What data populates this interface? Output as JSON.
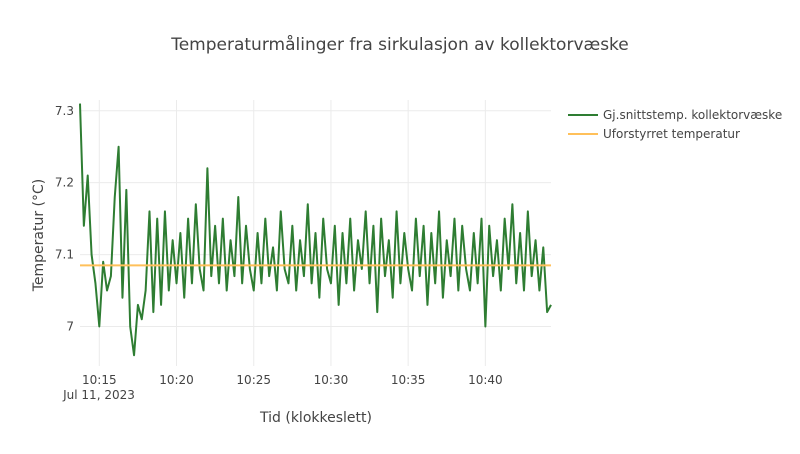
{
  "chart_data": {
    "type": "line",
    "title": "Temperaturmålinger fra sirkulasjon av kollektorvæske",
    "xlabel": "Tid (klokkeslett)",
    "ylabel": "Temperatur (°C)",
    "x_date_label": "Jul 11, 2023",
    "x_ticks": [
      "10:15",
      "10:20",
      "10:25",
      "10:30",
      "10:35",
      "10:40"
    ],
    "x_range": [
      "10:13:45",
      "10:44:15"
    ],
    "y_ticks": [
      "7",
      "7.1",
      "7.2",
      "7.3"
    ],
    "y_tick_values": [
      7.0,
      7.1,
      7.2,
      7.3
    ],
    "y_range": [
      6.945,
      7.315
    ],
    "grid": true,
    "legend_position": "top-right",
    "series": [
      {
        "name": "Gj.snittstemp. kollektorvæske",
        "color": "#2e7d32",
        "x": [
          "10:13:45",
          "10:14:00",
          "10:14:15",
          "10:14:30",
          "10:14:45",
          "10:15:00",
          "10:15:15",
          "10:15:30",
          "10:15:45",
          "10:16:00",
          "10:16:15",
          "10:16:30",
          "10:16:45",
          "10:17:00",
          "10:17:15",
          "10:17:30",
          "10:17:45",
          "10:18:00",
          "10:18:15",
          "10:18:30",
          "10:18:45",
          "10:19:00",
          "10:19:15",
          "10:19:30",
          "10:19:45",
          "10:20:00",
          "10:20:15",
          "10:20:30",
          "10:20:45",
          "10:21:00",
          "10:21:15",
          "10:21:30",
          "10:21:45",
          "10:22:00",
          "10:22:15",
          "10:22:30",
          "10:22:45",
          "10:23:00",
          "10:23:15",
          "10:23:30",
          "10:23:45",
          "10:24:00",
          "10:24:15",
          "10:24:30",
          "10:24:45",
          "10:25:00",
          "10:25:15",
          "10:25:30",
          "10:25:45",
          "10:26:00",
          "10:26:15",
          "10:26:30",
          "10:26:45",
          "10:27:00",
          "10:27:15",
          "10:27:30",
          "10:27:45",
          "10:28:00",
          "10:28:15",
          "10:28:30",
          "10:28:45",
          "10:29:00",
          "10:29:15",
          "10:29:30",
          "10:29:45",
          "10:30:00",
          "10:30:15",
          "10:30:30",
          "10:30:45",
          "10:31:00",
          "10:31:15",
          "10:31:30",
          "10:31:45",
          "10:32:00",
          "10:32:15",
          "10:32:30",
          "10:32:45",
          "10:33:00",
          "10:33:15",
          "10:33:30",
          "10:33:45",
          "10:34:00",
          "10:34:15",
          "10:34:30",
          "10:34:45",
          "10:35:00",
          "10:35:15",
          "10:35:30",
          "10:35:45",
          "10:36:00",
          "10:36:15",
          "10:36:30",
          "10:36:45",
          "10:37:00",
          "10:37:15",
          "10:37:30",
          "10:37:45",
          "10:38:00",
          "10:38:15",
          "10:38:30",
          "10:38:45",
          "10:39:00",
          "10:39:15",
          "10:39:30",
          "10:39:45",
          "10:40:00",
          "10:40:15",
          "10:40:30",
          "10:40:45",
          "10:41:00",
          "10:41:15",
          "10:41:30",
          "10:41:45",
          "10:42:00",
          "10:42:15",
          "10:42:30",
          "10:42:45",
          "10:43:00",
          "10:43:15",
          "10:43:30",
          "10:43:45",
          "10:44:00",
          "10:44:15"
        ],
        "y": [
          7.31,
          7.14,
          7.21,
          7.1,
          7.06,
          7.0,
          7.09,
          7.05,
          7.07,
          7.18,
          7.25,
          7.04,
          7.19,
          7.0,
          6.96,
          7.03,
          7.01,
          7.05,
          7.16,
          7.02,
          7.15,
          7.03,
          7.16,
          7.05,
          7.12,
          7.06,
          7.13,
          7.04,
          7.15,
          7.06,
          7.17,
          7.08,
          7.05,
          7.22,
          7.07,
          7.14,
          7.06,
          7.15,
          7.05,
          7.12,
          7.07,
          7.18,
          7.06,
          7.14,
          7.08,
          7.05,
          7.13,
          7.06,
          7.15,
          7.07,
          7.11,
          7.05,
          7.16,
          7.08,
          7.06,
          7.14,
          7.05,
          7.12,
          7.07,
          7.17,
          7.06,
          7.13,
          7.04,
          7.15,
          7.08,
          7.06,
          7.14,
          7.03,
          7.13,
          7.06,
          7.15,
          7.05,
          7.12,
          7.08,
          7.16,
          7.06,
          7.14,
          7.02,
          7.15,
          7.07,
          7.12,
          7.04,
          7.16,
          7.06,
          7.13,
          7.08,
          7.05,
          7.15,
          7.07,
          7.14,
          7.03,
          7.13,
          7.06,
          7.16,
          7.04,
          7.12,
          7.07,
          7.15,
          7.05,
          7.14,
          7.08,
          7.05,
          7.13,
          7.06,
          7.15,
          7.0,
          7.14,
          7.07,
          7.12,
          7.05,
          7.15,
          7.08,
          7.17,
          7.06,
          7.13,
          7.05,
          7.16,
          7.07,
          7.12,
          7.05,
          7.11,
          7.02,
          7.03
        ]
      },
      {
        "name": "Uforstyrret temperatur",
        "color": "#ffc05a",
        "x": [
          "10:13:45",
          "10:44:15"
        ],
        "y": [
          7.085,
          7.085
        ]
      }
    ]
  }
}
